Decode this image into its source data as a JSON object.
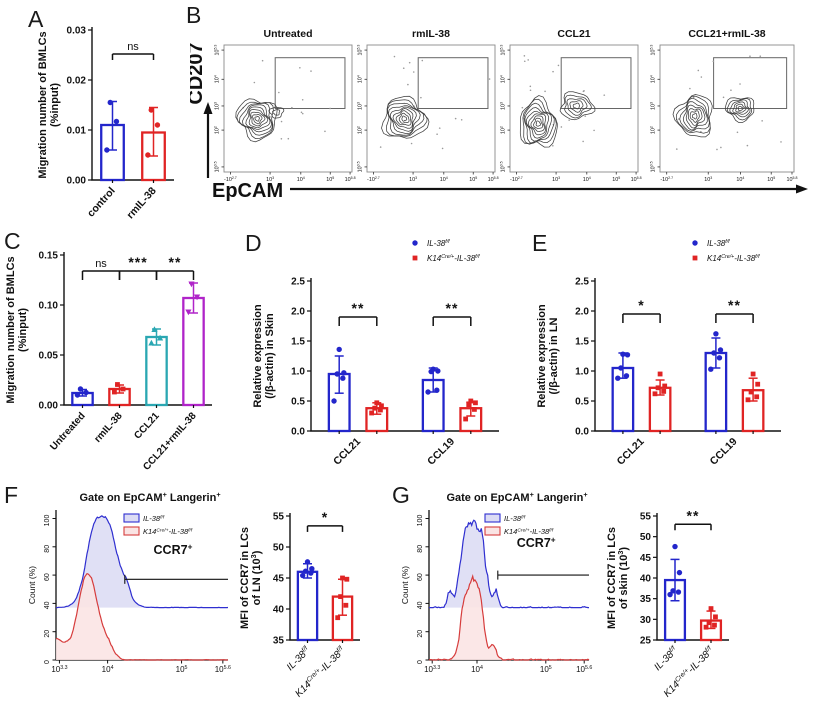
{
  "labels": {
    "A": "A",
    "B": "B",
    "C": "C",
    "D": "D",
    "E": "E",
    "F": "F",
    "G": "G"
  },
  "colors": {
    "blue": "#2326cb",
    "red": "#e02424",
    "teal": "#2aa7b2",
    "purple": "#b024c9",
    "hist_blue": "#2f2fd0",
    "hist_blue_fill": "#dcdcf4",
    "hist_red": "#d63c3c",
    "hist_red_fill": "#fae4e4",
    "contour": "#3f3f3f",
    "axis": "#111111"
  },
  "chart_data": [
    {
      "id": "A",
      "type": "bar",
      "title": "",
      "ylabel": [
        "Migration number of BMLCs",
        "(%input)"
      ],
      "ylim": [
        0,
        0.03
      ],
      "yticks": [
        0,
        0.01,
        0.02,
        0.03
      ],
      "ydec": 2,
      "units": 2,
      "xrot": -48,
      "bars": [
        {
          "label": "control",
          "u": 0.5,
          "value": 0.011,
          "color": "#2326cb",
          "marker": "circle",
          "err": [
            0.006,
            0.0157
          ],
          "points": [
            0.006,
            0.0117,
            0.0155
          ]
        },
        {
          "label": "rmIL-38",
          "u": 1.5,
          "value": 0.0095,
          "color": "#e02424",
          "marker": "circle",
          "err": [
            0.0048,
            0.0145
          ],
          "points": [
            0.005,
            0.011,
            0.014
          ]
        }
      ],
      "xlabels": [
        {
          "u": 0.5,
          "text": "control"
        },
        {
          "u": 1.5,
          "text": "rmIL-38"
        }
      ],
      "brackets": [
        {
          "a": 0.5,
          "b": 1.5,
          "y": 0.0252,
          "label": "ns",
          "drop": 6
        }
      ]
    },
    {
      "id": "B",
      "type": "flow",
      "ylabel": "CD207",
      "xlabel": "EpCAM",
      "xticks": [
        {
          "label": "-10^{2.7}",
          "f": 0.05
        },
        {
          "label": "10^{3}",
          "f": 0.36
        },
        {
          "label": "10^{4}",
          "f": 0.6
        },
        {
          "label": "10^{5}",
          "f": 0.83
        },
        {
          "label": "10^{5.8}",
          "f": 0.985
        }
      ],
      "yticks": [
        {
          "label": "10^{0.5}",
          "f": 0.04
        },
        {
          "label": "10^{2}",
          "f": 0.33
        },
        {
          "label": "10^{3}",
          "f": 0.52
        },
        {
          "label": "10^{4}",
          "f": 0.73
        },
        {
          "label": "10^{5.3}",
          "f": 0.96
        }
      ],
      "gate": {
        "x1": 0.4,
        "x2": 0.945,
        "y1": 0.5,
        "y2": 0.9
      },
      "plots": [
        {
          "title": "Untreated",
          "dots": 16,
          "seed": 11,
          "clusters": [
            {
              "cx": 0.26,
              "cy": 0.42,
              "rx": 0.15,
              "ry": 0.16,
              "rings": 9,
              "seed": 3
            },
            {
              "cx": 0.41,
              "cy": 0.47,
              "rx": 0.05,
              "ry": 0.045,
              "rings": 2,
              "seed": 5
            }
          ]
        },
        {
          "title": "rmIL-38",
          "dots": 16,
          "seed": 12,
          "clusters": [
            {
              "cx": 0.29,
              "cy": 0.42,
              "rx": 0.16,
              "ry": 0.17,
              "rings": 9,
              "seed": 8
            }
          ]
        },
        {
          "title": "CCL21",
          "dots": 20,
          "seed": 13,
          "clusters": [
            {
              "cx": 0.22,
              "cy": 0.38,
              "rx": 0.14,
              "ry": 0.19,
              "rings": 9,
              "seed": 15
            },
            {
              "cx": 0.52,
              "cy": 0.52,
              "rx": 0.13,
              "ry": 0.1,
              "rings": 5,
              "seed": 16
            }
          ]
        },
        {
          "title": "CCL21+rmIL-38",
          "dots": 20,
          "seed": 14,
          "clusters": [
            {
              "cx": 0.26,
              "cy": 0.44,
              "rx": 0.13,
              "ry": 0.17,
              "rings": 8,
              "seed": 22
            },
            {
              "cx": 0.6,
              "cy": 0.5,
              "rx": 0.11,
              "ry": 0.09,
              "rings": 6,
              "seed": 23
            }
          ]
        }
      ]
    },
    {
      "id": "C",
      "type": "bar",
      "ylabel": [
        "Migration number of BMLCs",
        "(%input)"
      ],
      "ylim": [
        0,
        0.15
      ],
      "yticks": [
        0,
        0.05,
        0.1,
        0.15
      ],
      "ydec": 2,
      "units": 4,
      "xrot": -48,
      "xfs": 10,
      "bars": [
        {
          "label": "Untreated",
          "u": 0.5,
          "value": 0.012,
          "color": "#2326cb",
          "marker": "circle",
          "err": [
            0.009,
            0.0155
          ],
          "points": [
            0.01,
            0.0125,
            0.016
          ]
        },
        {
          "label": "rmIL-38",
          "u": 1.5,
          "value": 0.016,
          "color": "#e02424",
          "marker": "square",
          "err": [
            0.012,
            0.02
          ],
          "points": [
            0.013,
            0.016,
            0.0205
          ]
        },
        {
          "label": "CCL21",
          "u": 2.5,
          "value": 0.068,
          "color": "#2aa7b2",
          "marker": "triangle",
          "err": [
            0.06,
            0.076
          ],
          "points": [
            0.062,
            0.067,
            0.0755
          ]
        },
        {
          "label": "CCL21+rmIL-38",
          "u": 3.5,
          "value": 0.107,
          "color": "#b024c9",
          "marker": "triangle-down",
          "err": [
            0.092,
            0.122
          ],
          "points": [
            0.093,
            0.108,
            0.121
          ]
        }
      ],
      "xlabels": [
        {
          "u": 0.5,
          "text": "Untreated"
        },
        {
          "u": 1.5,
          "text": "rmIL-38"
        },
        {
          "u": 2.5,
          "text": "CCL21"
        },
        {
          "u": 3.5,
          "text": "CCL21+rmIL-38"
        }
      ],
      "brackets": [
        {
          "a": 0.5,
          "b": 1.5,
          "y": 0.134,
          "label": "ns",
          "drop": 9
        },
        {
          "a": 1.5,
          "b": 2.5,
          "y": 0.134,
          "label": "***",
          "drop": 9
        },
        {
          "a": 2.5,
          "b": 3.5,
          "y": 0.134,
          "label": "**",
          "drop": 9
        }
      ]
    },
    {
      "id": "D",
      "type": "bar",
      "ylabel": [
        "Relative  expression",
        "(/β-actin) in Skin"
      ],
      "ylim": [
        0,
        2.5
      ],
      "yticks": [
        0,
        0.5,
        1,
        1.5,
        2,
        2.5
      ],
      "ydec": 1,
      "units": 5,
      "xrot": -45,
      "bars": [
        {
          "group": "CCL21",
          "series": "IL-38^{f/f}",
          "u": 0.75,
          "value": 0.95,
          "color": "#2326cb",
          "marker": "circle",
          "err": [
            0.63,
            1.25
          ],
          "points": [
            0.5,
            0.88,
            0.95,
            0.97,
            1.36
          ]
        },
        {
          "group": "CCL21",
          "series": "K14^{Cre/+}-IL-38^{f/f}",
          "u": 1.75,
          "value": 0.38,
          "color": "#e02424",
          "marker": "square",
          "err": [
            0.28,
            0.47
          ],
          "points": [
            0.3,
            0.35,
            0.38,
            0.42,
            0.47
          ]
        },
        {
          "group": "CCL19",
          "series": "IL-38^{f/f}",
          "u": 3.25,
          "value": 0.85,
          "color": "#2326cb",
          "marker": "circle",
          "err": [
            0.65,
            1.05
          ],
          "points": [
            0.65,
            0.68,
            0.99,
            1.0,
            1.03
          ]
        },
        {
          "group": "CCL19",
          "series": "K14^{Cre/+}-IL-38^{f/f}",
          "u": 4.25,
          "value": 0.38,
          "color": "#e02424",
          "marker": "square",
          "err": [
            0.25,
            0.48
          ],
          "points": [
            0.2,
            0.36,
            0.44,
            0.47,
            0.5
          ]
        }
      ],
      "xlabels": [
        {
          "u": 1.25,
          "text": "CCL21"
        },
        {
          "u": 3.75,
          "text": "CCL19"
        }
      ],
      "brackets": [
        {
          "a": 0.75,
          "b": 1.75,
          "y": 1.9,
          "label": "**",
          "drop": 9
        },
        {
          "a": 3.25,
          "b": 4.25,
          "y": 1.9,
          "label": "**",
          "drop": 9
        }
      ],
      "legend": {
        "items": [
          {
            "marker": "circle",
            "color": "#2326cb",
            "label": "IL-38^{f/f}"
          },
          {
            "marker": "square",
            "color": "#e02424",
            "label": "K14^{Cre/+}-IL-38^{f/f}"
          }
        ]
      }
    },
    {
      "id": "E",
      "type": "bar",
      "ylabel": [
        "Relative  expression",
        "(/β-actin) in LN"
      ],
      "ylim": [
        0,
        2.5
      ],
      "yticks": [
        0,
        0.5,
        1,
        1.5,
        2,
        2.5
      ],
      "ydec": 1,
      "units": 5,
      "xrot": -45,
      "bars": [
        {
          "group": "CCL21",
          "series": "IL-38^{f/f}",
          "u": 0.75,
          "value": 1.05,
          "color": "#2326cb",
          "marker": "circle",
          "err": [
            0.88,
            1.3
          ],
          "points": [
            0.88,
            0.92,
            1.05,
            1.27,
            1.28
          ]
        },
        {
          "group": "CCL21",
          "series": "K14^{Cre/+}-IL-38^{f/f}",
          "u": 1.75,
          "value": 0.72,
          "color": "#e02424",
          "marker": "square",
          "err": [
            0.6,
            0.85
          ],
          "points": [
            0.62,
            0.66,
            0.72,
            0.75,
            0.95
          ]
        },
        {
          "group": "CCL19",
          "series": "IL-38^{f/f}",
          "u": 3.25,
          "value": 1.3,
          "color": "#2326cb",
          "marker": "circle",
          "err": [
            1.05,
            1.55
          ],
          "points": [
            1.03,
            1.22,
            1.3,
            1.35,
            1.62
          ]
        },
        {
          "group": "CCL19",
          "series": "K14^{Cre/+}-IL-38^{f/f}",
          "u": 4.25,
          "value": 0.68,
          "color": "#e02424",
          "marker": "square",
          "err": [
            0.5,
            0.88
          ],
          "points": [
            0.52,
            0.57,
            0.65,
            0.78,
            0.95
          ]
        }
      ],
      "xlabels": [
        {
          "u": 1.25,
          "text": "CCL21"
        },
        {
          "u": 3.75,
          "text": "CCL19"
        }
      ],
      "brackets": [
        {
          "a": 0.75,
          "b": 1.75,
          "y": 1.95,
          "label": "*",
          "drop": 9
        },
        {
          "a": 3.25,
          "b": 4.25,
          "y": 1.95,
          "label": "**",
          "drop": 9
        }
      ],
      "legend": {
        "items": [
          {
            "marker": "circle",
            "color": "#2326cb",
            "label": "IL-38^{f/f}"
          },
          {
            "marker": "square",
            "color": "#e02424",
            "label": "K14^{Cre/+}-IL-38^{f/f}"
          }
        ]
      }
    },
    {
      "id": "F_hist",
      "type": "histogram",
      "title": "Gate on EpCAM^{+} Langerin^{+}",
      "ylabel": "Count (%)",
      "yticks": [
        0,
        20,
        40,
        60,
        80,
        100
      ],
      "ymax_scale": 106,
      "xticks": [
        {
          "label": "10^{3.3}",
          "f": 0.02
        },
        {
          "label": "10^{4}",
          "f": 0.3
        },
        {
          "label": "10^{5}",
          "f": 0.73
        },
        {
          "label": "10^{5.6}",
          "f": 0.97
        }
      ],
      "gate": {
        "y": 57,
        "fx": 0.4,
        "label": "CCR7^{+}",
        "lfx": 0.68,
        "ly": 75
      },
      "series": [
        {
          "name": "IL-38^{f/f}",
          "color": "#2f2fd0",
          "fill": "#dcdcf4",
          "baseline": 37,
          "noise": 1.5,
          "seed": 7,
          "peaks": [
            {
              "c": 0.28,
              "w": 0.105,
              "h": 64
            },
            {
              "c": 0.2,
              "w": 0.05,
              "h": 14
            },
            {
              "c": 0.41,
              "w": 0.03,
              "h": 6
            }
          ]
        },
        {
          "name": "K14^{Cre/+}-IL-38^{f/f}",
          "color": "#d63c3c",
          "fill": "#fae4e4",
          "baseline": 0,
          "noise": 1.5,
          "seed": 13,
          "peaks": [
            {
              "c": 0.185,
              "w": 0.08,
              "h": 62
            },
            {
              "c": 0.01,
              "w": 0.06,
              "h": 15
            },
            {
              "c": 0.3,
              "w": 0.05,
              "h": 9
            }
          ]
        }
      ]
    },
    {
      "id": "F_bar",
      "type": "bar",
      "ylabel": [
        "MFI of CCR7 in LCs",
        "of  LN (10^{3})"
      ],
      "ylim": [
        35,
        55
      ],
      "yticks": [
        35,
        40,
        45,
        50,
        55
      ],
      "ydec": 0,
      "units": 2,
      "xrot": -45,
      "xfs": 10,
      "bars": [
        {
          "label": "IL-38^{f/f}",
          "u": 0.5,
          "value": 46,
          "color": "#2326cb",
          "marker": "circle",
          "err": [
            45,
            47.3
          ],
          "points": [
            45.4,
            45.8,
            46.1,
            46.5,
            47.6
          ]
        },
        {
          "label": "K14^{Cre/+}-IL-38^{f/f}",
          "u": 1.5,
          "value": 42,
          "color": "#e02424",
          "marker": "square",
          "err": [
            39,
            44.8
          ],
          "points": [
            38.6,
            40.6,
            42,
            44.8,
            45
          ]
        }
      ],
      "xlabels": [
        {
          "u": 0.5,
          "text": "IL-38^{f/f}",
          "italic": true
        },
        {
          "u": 1.5,
          "text": "K14^{Cre/+}-IL-38^{f/f}",
          "italic": true
        }
      ],
      "brackets": [
        {
          "a": 0.5,
          "b": 1.5,
          "y": 53.4,
          "label": "*",
          "drop": 6
        }
      ]
    },
    {
      "id": "G_hist",
      "type": "histogram",
      "title": "Gate on EpCAM^{+} Langerin^{+}",
      "ylabel": "Count (%)",
      "yticks": [
        0,
        20,
        40,
        60,
        80,
        100
      ],
      "ymax_scale": 106,
      "xticks": [
        {
          "label": "10^{3.3}",
          "f": 0.02
        },
        {
          "label": "10^{4}",
          "f": 0.3
        },
        {
          "label": "10^{5}",
          "f": 0.73
        },
        {
          "label": "10^{5.6}",
          "f": 0.97
        }
      ],
      "gate": {
        "y": 60,
        "fx": 0.43,
        "label": "CCR7^{+}",
        "lfx": 0.67,
        "ly": 80
      },
      "series": [
        {
          "name": "IL-38^{f/f}",
          "color": "#2f2fd0",
          "fill": "#dcdcf4",
          "baseline": 37,
          "noise": 4.5,
          "seed": 21,
          "peaks": [
            {
              "c": 0.28,
              "w": 0.085,
              "h": 58
            },
            {
              "c": 0.22,
              "w": 0.03,
              "h": 18
            },
            {
              "c": 0.33,
              "w": 0.02,
              "h": 14
            },
            {
              "c": 0.13,
              "w": 0.02,
              "h": 10
            },
            {
              "c": 0.42,
              "w": 0.015,
              "h": 8
            }
          ]
        },
        {
          "name": "K14^{Cre/+}-IL-38^{f/f}",
          "color": "#d63c3c",
          "fill": "#fae4e4",
          "baseline": 0,
          "noise": 4,
          "seed": 33,
          "peaks": [
            {
              "c": 0.27,
              "w": 0.065,
              "h": 58
            },
            {
              "c": 0.33,
              "w": 0.025,
              "h": 16
            },
            {
              "c": 0.21,
              "w": 0.02,
              "h": 12
            },
            {
              "c": 0.4,
              "w": 0.03,
              "h": 8
            }
          ]
        }
      ]
    },
    {
      "id": "G_bar",
      "type": "bar",
      "ylabel": [
        "MFI of CCR7 in LCs",
        "of skin (10^{3})"
      ],
      "ylim": [
        25,
        55
      ],
      "yticks": [
        25,
        30,
        35,
        40,
        45,
        50,
        55
      ],
      "ydec": 0,
      "units": 2,
      "xrot": -45,
      "xfs": 10,
      "bars": [
        {
          "label": "IL-38^{f/f}",
          "u": 0.5,
          "value": 39.5,
          "color": "#2326cb",
          "marker": "circle",
          "err": [
            34.5,
            44.5
          ],
          "points": [
            36,
            36.6,
            36.9,
            41.3,
            47.6
          ]
        },
        {
          "label": "K14^{Cre/+}-IL-38^{f/f}",
          "u": 1.5,
          "value": 29.7,
          "color": "#e02424",
          "marker": "square",
          "err": [
            27.8,
            32
          ],
          "points": [
            28.1,
            28.6,
            29.2,
            30.6,
            32.6
          ]
        }
      ],
      "xlabels": [
        {
          "u": 0.5,
          "text": "IL-38^{f/f}",
          "italic": true
        },
        {
          "u": 1.5,
          "text": "K14^{Cre/+}-IL-38^{f/f}",
          "italic": true
        }
      ],
      "brackets": [
        {
          "a": 0.5,
          "b": 1.5,
          "y": 53,
          "label": "**",
          "drop": 6
        }
      ]
    }
  ]
}
